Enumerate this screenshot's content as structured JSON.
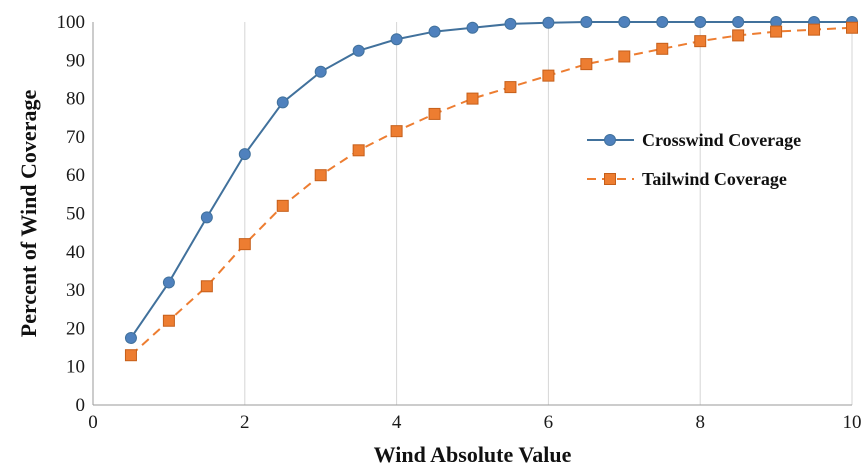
{
  "chart_data": {
    "type": "line",
    "title": "",
    "xlabel": "Wind Absolute Value",
    "ylabel": "Percent of Wind Coverage",
    "xlim": [
      0,
      10
    ],
    "ylim": [
      0,
      100
    ],
    "xticks": [
      0,
      2,
      4,
      6,
      8,
      10
    ],
    "yticks": [
      0,
      10,
      20,
      30,
      40,
      50,
      60,
      70,
      80,
      90,
      100
    ],
    "grid": "vertical-only",
    "legend_position": "right",
    "series": [
      {
        "name": "Crosswind Coverage",
        "color": "#41719c",
        "line_style": "solid",
        "marker": "circle",
        "x": [
          0.5,
          1,
          1.5,
          2,
          2.5,
          3,
          3.5,
          4,
          4.5,
          5,
          5.5,
          6,
          6.5,
          7,
          7.5,
          8,
          8.5,
          9,
          9.5,
          10
        ],
        "y": [
          17.5,
          32,
          49,
          65.5,
          79,
          87,
          92.5,
          95.5,
          97.5,
          98.5,
          99.5,
          99.8,
          100,
          100,
          100,
          100,
          100,
          100,
          100,
          100
        ]
      },
      {
        "name": "Tailwind Coverage",
        "color": "#ed7d31",
        "line_style": "dashed",
        "marker": "square",
        "x": [
          0.5,
          1,
          1.5,
          2,
          2.5,
          3,
          3.5,
          4,
          4.5,
          5,
          5.5,
          6,
          6.5,
          7,
          7.5,
          8,
          8.5,
          9,
          9.5,
          10
        ],
        "y": [
          13,
          22,
          31,
          42,
          52,
          60,
          66.5,
          71.5,
          76,
          80,
          83,
          86,
          89,
          91,
          93,
          95,
          96.5,
          97.5,
          98,
          98.5
        ]
      }
    ]
  }
}
